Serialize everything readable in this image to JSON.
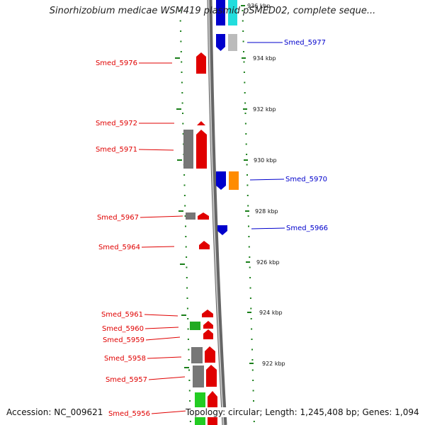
{
  "title": "Sinorhizobium medicae WSM419 plasmid pSMED02, complete seque...",
  "colors": {
    "forward": "#e00000",
    "reverse": "#0000cc",
    "grey": "#777777",
    "light_grey": "#bbbbbb",
    "green": "#22aa22",
    "orange": "#ff8c00",
    "cyan": "#22dddd",
    "tick": "#1a7f1a"
  },
  "gene_labels_left": [
    "Smed_5976",
    "Smed_5972",
    "Smed_5971",
    "Smed_5967",
    "Smed_5964",
    "Smed_5961",
    "Smed_5960",
    "Smed_5959",
    "Smed_5958",
    "Smed_5957",
    "Smed_5956"
  ],
  "gene_labels_right": [
    "Smed_5977",
    "Smed_5970",
    "Smed_5966"
  ],
  "scale_labels": [
    "936 kbp",
    "934 kbp",
    "932 kbp",
    "930 kbp",
    "928 kbp",
    "926 kbp",
    "924 kbp",
    "922 kbp"
  ],
  "footer": {
    "accession": "Accession: NC_009621",
    "summary": "Topology: circular; Length: 1,245,408 bp; Genes: 1,094"
  }
}
